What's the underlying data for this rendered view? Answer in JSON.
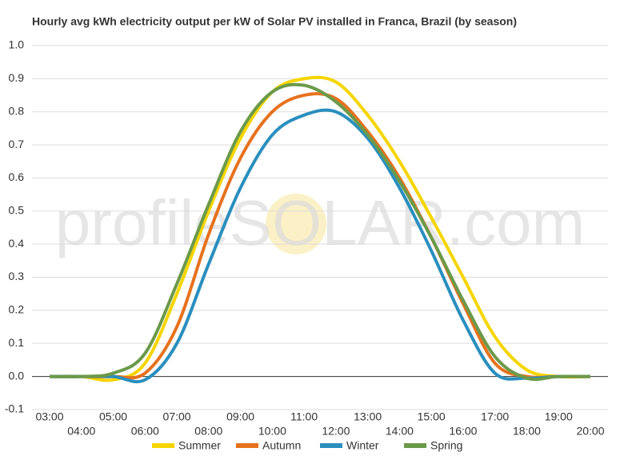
{
  "chart_data": {
    "type": "line",
    "title": "Hourly avg kWh electricity output per kW of Solar PV installed in Franca, Brazil (by season)",
    "watermark": "profileSOLAR.com",
    "categories": [
      "03:00",
      "04:00",
      "05:00",
      "06:00",
      "07:00",
      "08:00",
      "09:00",
      "10:00",
      "11:00",
      "12:00",
      "13:00",
      "14:00",
      "15:00",
      "16:00",
      "17:00",
      "18:00",
      "19:00",
      "20:00"
    ],
    "series": [
      {
        "name": "Summer",
        "color": "#f5d500",
        "values": [
          0,
          0,
          -0.01,
          0.04,
          0.25,
          0.5,
          0.72,
          0.86,
          0.9,
          0.89,
          0.79,
          0.65,
          0.48,
          0.3,
          0.12,
          0.02,
          0,
          0
        ]
      },
      {
        "name": "Autumn",
        "color": "#e6721e",
        "values": [
          0,
          0,
          0,
          0.01,
          0.15,
          0.43,
          0.66,
          0.8,
          0.85,
          0.84,
          0.74,
          0.6,
          0.42,
          0.22,
          0.04,
          0,
          0,
          0
        ]
      },
      {
        "name": "Winter",
        "color": "#2a8fbe",
        "values": [
          0,
          0,
          0,
          -0.01,
          0.1,
          0.34,
          0.57,
          0.73,
          0.79,
          0.8,
          0.72,
          0.57,
          0.38,
          0.17,
          0.01,
          -0.005,
          0,
          0
        ]
      },
      {
        "name": "Spring",
        "color": "#6b9a4a",
        "values": [
          0,
          0,
          0.01,
          0.07,
          0.28,
          0.52,
          0.74,
          0.86,
          0.88,
          0.83,
          0.73,
          0.59,
          0.42,
          0.23,
          0.06,
          -0.005,
          0,
          0
        ]
      }
    ],
    "ylim": [
      -0.1,
      1.0
    ],
    "yticks": [
      -0.1,
      {
        "value": 0,
        "label": "0.0"
      },
      0.1,
      0.2,
      0.3,
      0.4,
      0.5,
      0.6,
      0.7,
      0.8,
      0.9,
      {
        "value": 1,
        "label": "1.0"
      }
    ],
    "grid": true,
    "legend": "bottom"
  }
}
